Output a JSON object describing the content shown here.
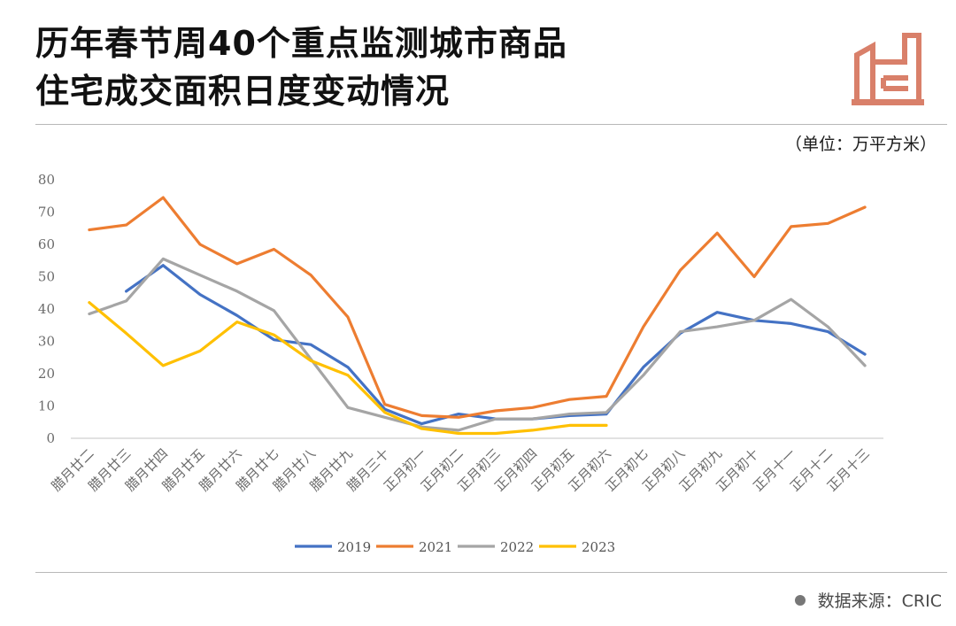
{
  "header": {
    "title_line1": "历年春节周40个重点监测城市商品",
    "title_line2": "住宅成交面积日度变动情况",
    "unit": "（单位：万平方米）",
    "logo_icon": "factory-building-icon"
  },
  "footer": {
    "source": "数据来源：CRIC"
  },
  "colors": {
    "2019": "#4472c4",
    "2021": "#ed7d31",
    "2022": "#a5a5a5",
    "2023": "#ffc000",
    "logo": "#d9806a"
  },
  "chart_data": {
    "type": "line",
    "title": "",
    "xlabel": "",
    "ylabel": "",
    "ylim": [
      0,
      80
    ],
    "yticks": [
      0,
      10,
      20,
      30,
      40,
      50,
      60,
      70,
      80
    ],
    "grid": false,
    "legend_position": "bottom",
    "categories": [
      "腊月廿二",
      "腊月廿三",
      "腊月廿四",
      "腊月廿五",
      "腊月廿六",
      "腊月廿七",
      "腊月廿八",
      "腊月廿九",
      "腊月三十",
      "正月初一",
      "正月初二",
      "正月初三",
      "正月初四",
      "正月初五",
      "正月初六",
      "正月初七",
      "正月初八",
      "正月初九",
      "正月初十",
      "正月十一",
      "正月十二",
      "正月十三"
    ],
    "series": [
      {
        "name": "2019",
        "color": "#4472c4",
        "values": [
          null,
          45.5,
          53.5,
          44.5,
          38,
          30.5,
          29,
          22,
          9,
          4.5,
          7.5,
          6,
          6,
          7,
          7.5,
          22,
          32.5,
          39,
          36.5,
          35.5,
          33,
          26
        ]
      },
      {
        "name": "2021",
        "color": "#ed7d31",
        "values": [
          64.5,
          66,
          74.5,
          60,
          54,
          58.5,
          50.5,
          37.5,
          10.5,
          7,
          6.5,
          8.5,
          9.5,
          12,
          13,
          34.5,
          52,
          63.5,
          50,
          65.5,
          66.5,
          71.5
        ]
      },
      {
        "name": "2022",
        "color": "#a5a5a5",
        "values": [
          38.5,
          42.5,
          55.5,
          50.5,
          45.5,
          39.5,
          24.5,
          9.5,
          6.5,
          3.5,
          2.5,
          6,
          6,
          7.5,
          8,
          19.5,
          33,
          34.5,
          36.5,
          43,
          34.5,
          22.5
        ]
      },
      {
        "name": "2023",
        "color": "#ffc000",
        "values": [
          42,
          32.5,
          22.5,
          27,
          36,
          32,
          24,
          19.5,
          8,
          3,
          1.5,
          1.5,
          2.5,
          4,
          4,
          null,
          null,
          null,
          null,
          null,
          null,
          null
        ]
      }
    ]
  }
}
